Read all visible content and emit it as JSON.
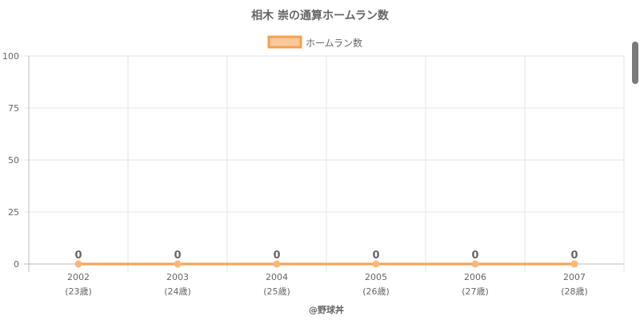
{
  "colors": {
    "line": "#f6a04d",
    "fill": "#f9c89a",
    "point": "#f9b877",
    "grid": "#e6e6e6",
    "text": "#666666"
  },
  "credit": "@野球丼",
  "chart_data": {
    "type": "line",
    "title": "相木 崇の通算ホームラン数",
    "legend_position": "top-center",
    "categories": [
      "2002",
      "2003",
      "2004",
      "2005",
      "2006",
      "2007"
    ],
    "sub_labels": [
      "(23歳)",
      "(24歳)",
      "(25歳)",
      "(26歳)",
      "(27歳)",
      "(28歳)"
    ],
    "series": [
      {
        "name": "ホームラン数",
        "values": [
          0,
          0,
          0,
          0,
          0,
          0
        ]
      }
    ],
    "data_labels": [
      "0",
      "0",
      "0",
      "0",
      "0",
      "0"
    ],
    "y_ticks": [
      "0",
      "25",
      "50",
      "75",
      "100"
    ],
    "ylim": [
      0,
      100
    ],
    "grid": true
  }
}
